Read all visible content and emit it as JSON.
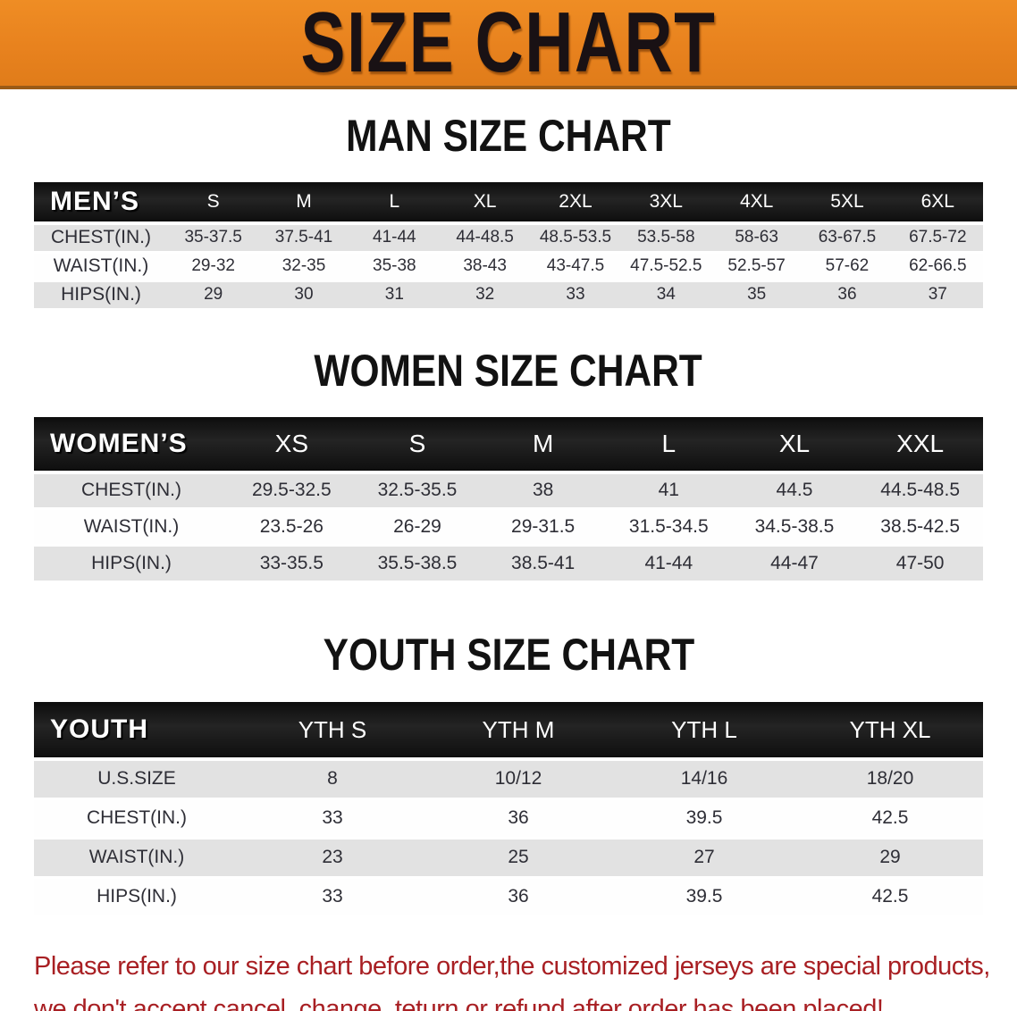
{
  "banner": {
    "title": "SIZE CHART",
    "bg_color": "#e8821e",
    "text_color": "#191114"
  },
  "colors": {
    "table_header_bg": "#191919",
    "table_header_text": "#ffffff",
    "row_gray": "#e2e2e2",
    "row_white": "#fefefe",
    "footnote_red": "#a81f23"
  },
  "men": {
    "heading": "MAN SIZE CHART",
    "header_label": "MEN’S",
    "columns": [
      "S",
      "M",
      "L",
      "XL",
      "2XL",
      "3XL",
      "4XL",
      "5XL",
      "6XL"
    ],
    "rows": [
      {
        "label": "CHEST(IN.)",
        "values": [
          "35-37.5",
          "37.5-41",
          "41-44",
          "44-48.5",
          "48.5-53.5",
          "53.5-58",
          "58-63",
          "63-67.5",
          "67.5-72"
        ]
      },
      {
        "label": "WAIST(IN.)",
        "values": [
          "29-32",
          "32-35",
          "35-38",
          "38-43",
          "43-47.5",
          "47.5-52.5",
          "52.5-57",
          "57-62",
          "62-66.5"
        ]
      },
      {
        "label": "HIPS(IN.)",
        "values": [
          "29",
          "30",
          "31",
          "32",
          "33",
          "34",
          "35",
          "36",
          "37"
        ]
      }
    ]
  },
  "women": {
    "heading": "WOMEN SIZE CHART",
    "header_label": "WOMEN’S",
    "columns": [
      "XS",
      "S",
      "M",
      "L",
      "XL",
      "XXL"
    ],
    "rows": [
      {
        "label": "CHEST(IN.)",
        "values": [
          "29.5-32.5",
          "32.5-35.5",
          "38",
          "41",
          "44.5",
          "44.5-48.5"
        ]
      },
      {
        "label": "WAIST(IN.)",
        "values": [
          "23.5-26",
          "26-29",
          "29-31.5",
          "31.5-34.5",
          "34.5-38.5",
          "38.5-42.5"
        ]
      },
      {
        "label": "HIPS(IN.)",
        "values": [
          "33-35.5",
          "35.5-38.5",
          "38.5-41",
          "41-44",
          "44-47",
          "47-50"
        ]
      }
    ]
  },
  "youth": {
    "heading": "YOUTH SIZE CHART",
    "header_label": "YOUTH",
    "columns": [
      "YTH S",
      "YTH M",
      "YTH L",
      "YTH XL"
    ],
    "rows": [
      {
        "label": "U.S.SIZE",
        "values": [
          "8",
          "10/12",
          "14/16",
          "18/20"
        ]
      },
      {
        "label": "CHEST(IN.)",
        "values": [
          "33",
          "36",
          "39.5",
          "42.5"
        ]
      },
      {
        "label": "WAIST(IN.)",
        "values": [
          "23",
          "25",
          "27",
          "29"
        ]
      },
      {
        "label": "HIPS(IN.)",
        "values": [
          "33",
          "36",
          "39.5",
          "42.5"
        ]
      }
    ]
  },
  "footnote": {
    "line1": "Please refer to our size chart before order,the customized jerseys are special products,",
    "line2": "we don't accept cancel, change, teturn or refund after order has been placed!"
  }
}
